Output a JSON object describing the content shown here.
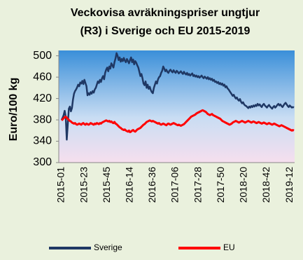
{
  "chart_data": {
    "type": "line",
    "title": "Veckovisa avräkningspriser  ungtjur",
    "subtitle": "(R3) i Sverige och EU 2015-2019",
    "y_label": "Euro/100 kg",
    "ylim": [
      300,
      510
    ],
    "yticks": [
      300,
      340,
      380,
      420,
      460,
      500
    ],
    "legend": "bottom",
    "categories": [
      "2015-01",
      null,
      null,
      null,
      null,
      null,
      null,
      null,
      null,
      null,
      null,
      null,
      null,
      null,
      null,
      null,
      null,
      null,
      null,
      null,
      null,
      null,
      "2015-23",
      null,
      null,
      null,
      null,
      null,
      null,
      null,
      null,
      null,
      null,
      null,
      null,
      null,
      null,
      null,
      null,
      null,
      null,
      null,
      null,
      null,
      "2015-45",
      null,
      null,
      null,
      null,
      null,
      null,
      null,
      null,
      null,
      null,
      null,
      null,
      null,
      null,
      null,
      null,
      null,
      null,
      null,
      null,
      null,
      "2016-14",
      null,
      null,
      null,
      null,
      null,
      null,
      null,
      null,
      null,
      null,
      null,
      null,
      null,
      null,
      null,
      null,
      null,
      null,
      null,
      null,
      null,
      "2016-36",
      null,
      null,
      null,
      null,
      null,
      null,
      null,
      null,
      null,
      null,
      null,
      null,
      null,
      null,
      null,
      null,
      null,
      null,
      null,
      null,
      null,
      "2017-06",
      null,
      null,
      null,
      null,
      null,
      null,
      null,
      null,
      null,
      null,
      null,
      null,
      null,
      null,
      null,
      null,
      null,
      null,
      null,
      null,
      null,
      "2017-28",
      null,
      null,
      null,
      null,
      null,
      null,
      null,
      null,
      null,
      null,
      null,
      null,
      null,
      null,
      null,
      null,
      null,
      null,
      null,
      null,
      null,
      "2017-50",
      null,
      null,
      null,
      null,
      null,
      null,
      null,
      null,
      null,
      null,
      null,
      null,
      null,
      null,
      null,
      null,
      null,
      null,
      null,
      null,
      null,
      "2018-20",
      null,
      null,
      null,
      null,
      null,
      null,
      null,
      null,
      null,
      null,
      null,
      null,
      null,
      null,
      null,
      null,
      null,
      null,
      null,
      null,
      null,
      "2018-42",
      null,
      null,
      null,
      null,
      null,
      null,
      null,
      null,
      null,
      null,
      null,
      null,
      null,
      null,
      null,
      null,
      null,
      null,
      null,
      null,
      null,
      "2019-12",
      null,
      null,
      null,
      null
    ],
    "series": [
      {
        "name": "Sverige",
        "color": "#1f3864",
        "values": [
          380,
          384,
          389,
          397,
          386,
          343,
          372,
          401,
          405,
          396,
          402,
          418,
          429,
          434,
          437,
          441,
          446,
          443,
          450,
          448,
          453,
          447,
          455,
          449,
          443,
          426,
          430,
          427,
          432,
          429,
          434,
          431,
          437,
          440,
          446,
          452,
          449,
          455,
          451,
          458,
          462,
          456,
          468,
          474,
          478,
          471,
          480,
          476,
          486,
          482,
          478,
          488,
          495,
          505,
          500,
          492,
          497,
          489,
          494,
          490,
          496,
          491,
          488,
          494,
          490,
          486,
          492,
          497,
          488,
          493,
          484,
          490,
          487,
          482,
          478,
          470,
          462,
          466,
          458,
          448,
          445,
          452,
          440,
          446,
          438,
          442,
          436,
          432,
          430,
          440,
          446,
          452,
          448,
          456,
          460,
          462,
          468,
          472,
          480,
          476,
          471,
          474,
          470,
          468,
          472,
          474,
          471,
          469,
          473,
          470,
          468,
          472,
          470,
          467,
          469,
          471,
          468,
          466,
          470,
          467,
          465,
          468,
          464,
          466,
          463,
          465,
          467,
          462,
          464,
          461,
          463,
          460,
          462,
          459,
          461,
          463,
          460,
          458,
          461,
          459,
          457,
          460,
          456,
          458,
          455,
          457,
          453,
          455,
          451,
          452,
          449,
          451,
          447,
          449,
          446,
          448,
          444,
          446,
          441,
          443,
          439,
          437,
          434,
          431,
          428,
          425,
          427,
          423,
          420,
          422,
          418,
          416,
          419,
          414,
          411,
          413,
          409,
          407,
          406,
          404,
          402,
          405,
          403,
          406,
          404,
          407,
          405,
          408,
          406,
          410,
          407,
          409,
          406,
          404,
          408,
          410,
          407,
          405,
          403,
          406,
          408,
          405,
          403,
          401,
          404,
          406,
          403,
          405,
          408,
          410,
          407,
          409,
          406,
          404,
          407,
          410,
          412,
          409,
          406,
          404,
          407,
          405,
          403,
          404,
          403
        ]
      },
      {
        "name": "EU",
        "color": "#ff0000",
        "values": [
          379,
          381,
          383,
          385,
          386,
          384,
          382,
          380,
          378,
          377,
          375,
          374,
          373,
          374,
          372,
          371,
          372,
          373,
          372,
          371,
          373,
          374,
          372,
          371,
          373,
          372,
          371,
          372,
          374,
          373,
          372,
          371,
          373,
          372,
          374,
          373,
          372,
          374,
          373,
          375,
          376,
          377,
          378,
          379,
          378,
          377,
          378,
          376,
          377,
          375,
          374,
          376,
          373,
          372,
          370,
          368,
          366,
          365,
          363,
          362,
          361,
          362,
          360,
          359,
          358,
          360,
          357,
          358,
          360,
          361,
          359,
          358,
          360,
          362,
          363,
          364,
          365,
          367,
          369,
          371,
          372,
          374,
          376,
          377,
          378,
          379,
          378,
          377,
          378,
          377,
          376,
          375,
          374,
          373,
          374,
          372,
          371,
          372,
          373,
          372,
          371,
          370,
          372,
          373,
          372,
          371,
          372,
          373,
          374,
          373,
          372,
          371,
          370,
          371,
          370,
          369,
          370,
          371,
          372,
          374,
          376,
          378,
          380,
          382,
          384,
          386,
          387,
          388,
          389,
          390,
          392,
          393,
          394,
          395,
          396,
          397,
          398,
          397,
          396,
          395,
          393,
          391,
          390,
          389,
          390,
          391,
          389,
          388,
          387,
          386,
          385,
          384,
          383,
          382,
          380,
          378,
          377,
          376,
          375,
          374,
          373,
          372,
          371,
          372,
          373,
          375,
          376,
          377,
          378,
          377,
          376,
          375,
          376,
          377,
          378,
          377,
          376,
          375,
          376,
          377,
          378,
          377,
          376,
          375,
          376,
          377,
          376,
          375,
          374,
          375,
          376,
          375,
          374,
          373,
          374,
          375,
          374,
          373,
          372,
          373,
          374,
          373,
          372,
          371,
          372,
          373,
          372,
          371,
          370,
          369,
          368,
          369,
          370,
          369,
          368,
          367,
          366,
          365,
          364,
          363,
          362,
          361,
          360,
          361,
          360
        ]
      }
    ]
  }
}
